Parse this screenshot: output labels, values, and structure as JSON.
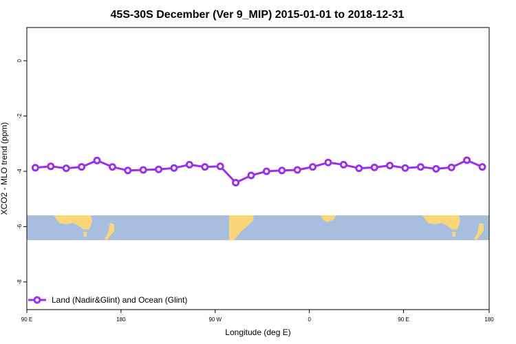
{
  "chart_data": {
    "type": "line",
    "title": "45S-30S December (Ver 9_MIP)   2015-01-01 to 2018-12-31",
    "xlabel": "Longitude (deg E)",
    "ylabel": "XCO2 - MLO trend (ppm)",
    "xlim": [
      -90,
      180
    ],
    "ylim": [
      -9.0,
      1.2
    ],
    "x_ticks": [
      {
        "value": -90,
        "label": "90 E"
      },
      {
        "value": -35,
        "label": "180"
      },
      {
        "value": 20,
        "label": "90 W"
      },
      {
        "value": 75,
        "label": "0"
      },
      {
        "value": 130,
        "label": "90 E"
      },
      {
        "value": 180,
        "label": "180"
      }
    ],
    "y_ticks": [
      {
        "value": 0,
        "label": "0"
      },
      {
        "value": -2,
        "label": "-2"
      },
      {
        "value": -4,
        "label": "-4"
      },
      {
        "value": -6,
        "label": "-6"
      },
      {
        "value": -8,
        "label": "-8"
      }
    ],
    "legend": {
      "position": "bottom-left",
      "entries": [
        "Land (Nadir&Glint) and Ocean (Glint)"
      ]
    },
    "series": [
      {
        "name": "Land (Nadir&Glint) and Ocean (Glint)",
        "color": "#9b30e6",
        "x": [
          -85,
          -76,
          -67,
          -58,
          -49,
          -40,
          -31,
          -22,
          -13,
          -4,
          5,
          14,
          23,
          32,
          41,
          50,
          59,
          68,
          77,
          86,
          95,
          104,
          113,
          122,
          131,
          140,
          149,
          158,
          167,
          176
        ],
        "values": [
          -3.87,
          -3.82,
          -3.89,
          -3.84,
          -3.61,
          -3.84,
          -3.97,
          -3.95,
          -3.93,
          -3.88,
          -3.76,
          -3.84,
          -3.82,
          -4.41,
          -4.15,
          -4.0,
          -3.97,
          -3.95,
          -3.84,
          -3.68,
          -3.76,
          -3.89,
          -3.86,
          -3.79,
          -3.88,
          -3.84,
          -3.91,
          -3.86,
          -3.6,
          -3.84
        ]
      }
    ],
    "map_band": {
      "y_range": [
        -6.33,
        -5.55
      ],
      "ocean_color": "#a8bedf",
      "land_color": "#f9d778"
    },
    "grid": false
  }
}
